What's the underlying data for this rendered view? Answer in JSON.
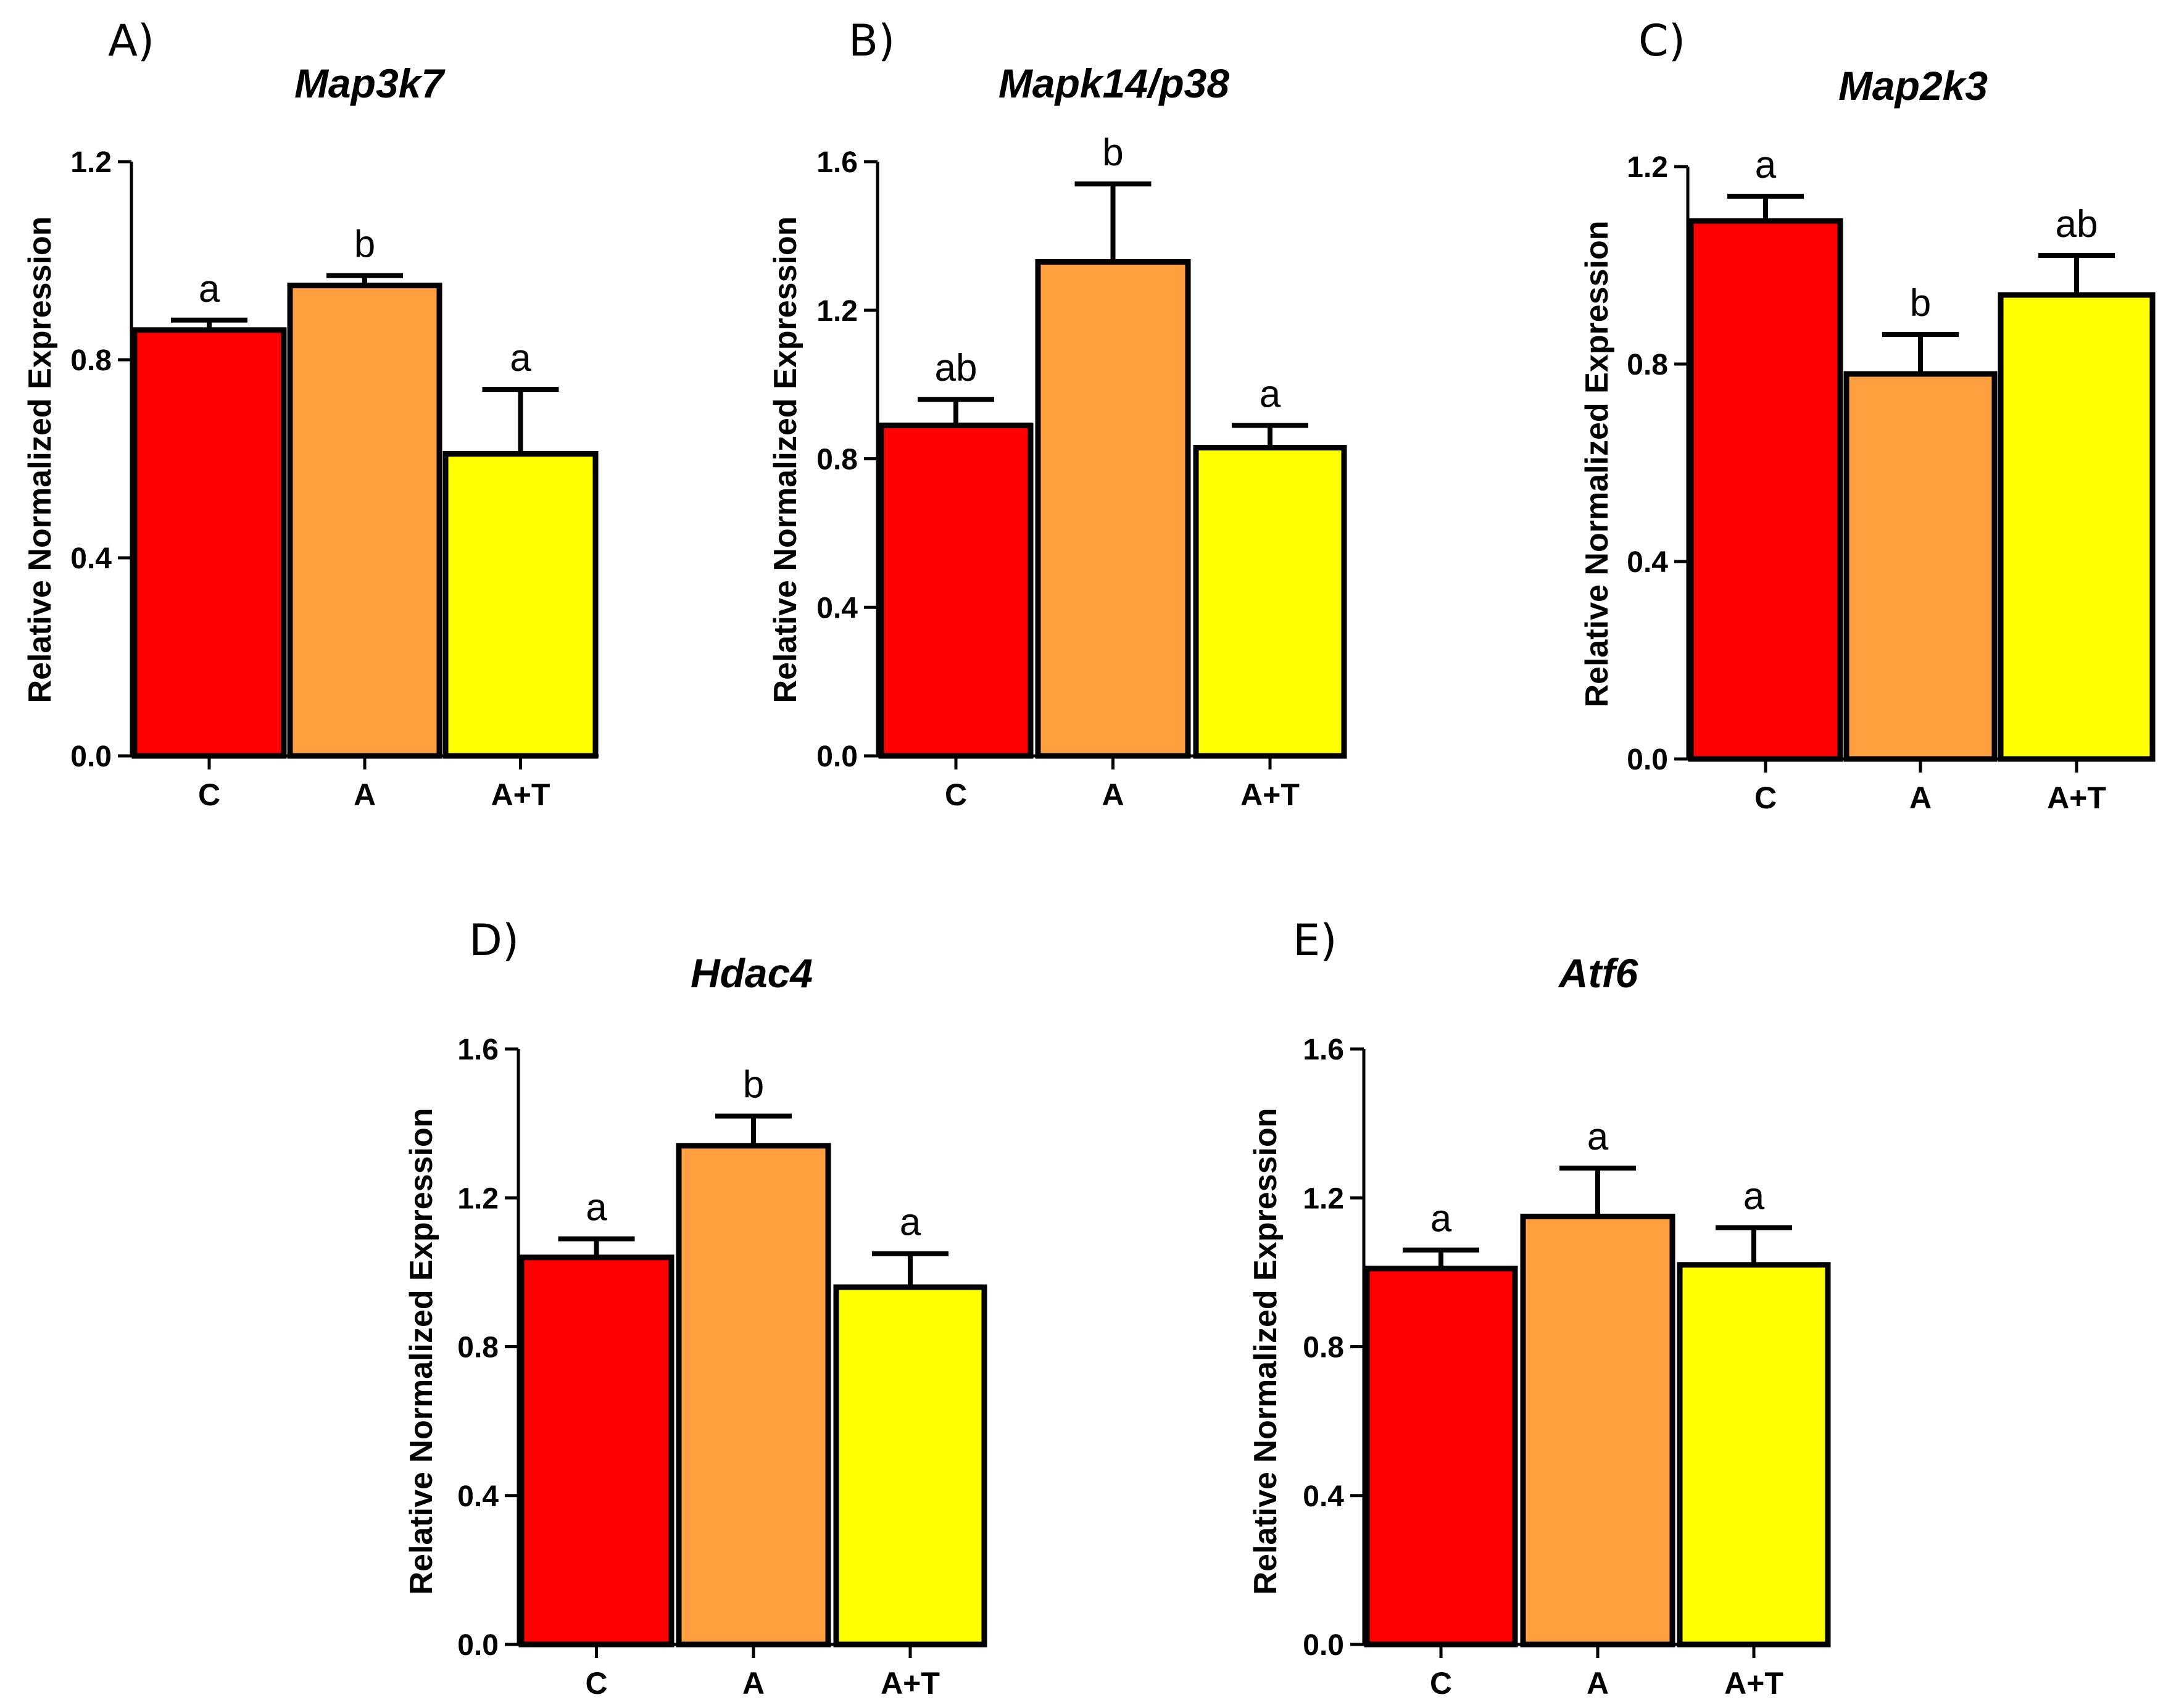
{
  "figure": {
    "panels": [
      "A)",
      "B)",
      "C)",
      "D)",
      "E)"
    ]
  },
  "colors": {
    "C": "#ff0000",
    "A": "#ff9f3f",
    "A+T": "#ffff00",
    "outline": "#000000"
  },
  "chart_data": [
    {
      "panel": "A)",
      "type": "bar",
      "title": "Map3k7",
      "xlabel": "",
      "ylabel": "Relative Normalized Expression",
      "categories": [
        "C",
        "A",
        "A+T"
      ],
      "values": [
        0.86,
        0.95,
        0.61
      ],
      "errors": [
        0.02,
        0.02,
        0.13
      ],
      "significance": [
        "a",
        "b",
        "a"
      ],
      "ylim": [
        0,
        1.2
      ],
      "yticks": [
        0.0,
        0.4,
        0.8,
        1.2
      ],
      "ytick_labels": [
        "0.0",
        "0.4",
        "0.8",
        "1.2"
      ]
    },
    {
      "panel": "B)",
      "type": "bar",
      "title": "Mapk14/p38",
      "xlabel": "",
      "ylabel": "Relative Normalized Expression",
      "categories": [
        "C",
        "A",
        "A+T"
      ],
      "values": [
        0.89,
        1.33,
        0.83
      ],
      "errors": [
        0.07,
        0.21,
        0.06
      ],
      "significance": [
        "ab",
        "b",
        "a"
      ],
      "ylim": [
        0,
        1.6
      ],
      "yticks": [
        0.0,
        0.4,
        0.8,
        1.2,
        1.6
      ],
      "ytick_labels": [
        "0.0",
        "0.4",
        "0.8",
        "1.2",
        "1.6"
      ]
    },
    {
      "panel": "C)",
      "type": "bar",
      "title": "Map2k3",
      "xlabel": "",
      "ylabel": "Relative Normalized Expression",
      "categories": [
        "C",
        "A",
        "A+T"
      ],
      "values": [
        1.09,
        0.78,
        0.94
      ],
      "errors": [
        0.05,
        0.08,
        0.08
      ],
      "significance": [
        "a",
        "b",
        "ab"
      ],
      "ylim": [
        0,
        1.2
      ],
      "yticks": [
        0.0,
        0.4,
        0.8,
        1.2
      ],
      "ytick_labels": [
        "0.0",
        "0.4",
        "0.8",
        "1.2"
      ]
    },
    {
      "panel": "D)",
      "type": "bar",
      "title": "Hdac4",
      "xlabel": "",
      "ylabel": "Relative Normalized Expression",
      "categories": [
        "C",
        "A",
        "A+T"
      ],
      "values": [
        1.04,
        1.34,
        0.96
      ],
      "errors": [
        0.05,
        0.08,
        0.09
      ],
      "significance": [
        "a",
        "b",
        "a"
      ],
      "ylim": [
        0,
        1.6
      ],
      "yticks": [
        0.0,
        0.4,
        0.8,
        1.2,
        1.6
      ],
      "ytick_labels": [
        "0.0",
        "0.4",
        "0.8",
        "1.2",
        "1.6"
      ]
    },
    {
      "panel": "E)",
      "type": "bar",
      "title": "Atf6",
      "xlabel": "",
      "ylabel": "Relative Normalized Expression",
      "categories": [
        "C",
        "A",
        "A+T"
      ],
      "values": [
        1.01,
        1.15,
        1.02
      ],
      "errors": [
        0.05,
        0.13,
        0.1
      ],
      "significance": [
        "a",
        "a",
        "a"
      ],
      "ylim": [
        0,
        1.6
      ],
      "yticks": [
        0.0,
        0.4,
        0.8,
        1.2,
        1.6
      ],
      "ytick_labels": [
        "0.0",
        "0.4",
        "0.8",
        "1.2",
        "1.6"
      ]
    }
  ]
}
